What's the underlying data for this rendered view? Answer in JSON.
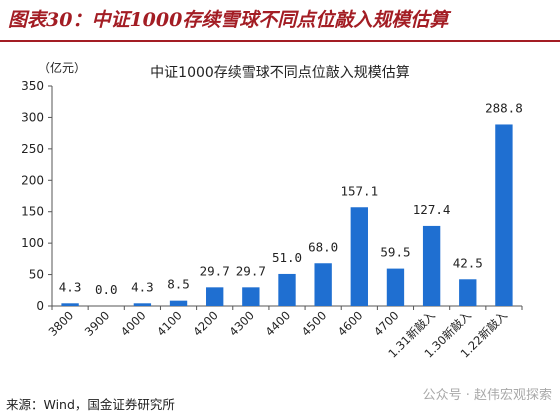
{
  "figure_title": "图表30：中证1000存续雪球不同点位敲入规模估算",
  "source_note": "来源：Wind，国金证券研究所",
  "watermark": "公众号 · 赵伟宏观探索",
  "colors": {
    "bar": "#1f6fd1",
    "title": "#a31d24"
  },
  "chart_data": {
    "type": "bar",
    "title": "中证1000存续雪球不同点位敲入规模估算",
    "unit_label": "（亿元）",
    "categories": [
      "3800",
      "3900",
      "4000",
      "4100",
      "4200",
      "4300",
      "4400",
      "4500",
      "4600",
      "4700",
      "1.31新敲入",
      "1.30新敲入",
      "1.22新敲入"
    ],
    "values": [
      4.3,
      0.0,
      4.3,
      8.5,
      29.7,
      29.7,
      51.0,
      68.0,
      157.1,
      59.5,
      127.4,
      42.5,
      288.8
    ],
    "value_labels": [
      "4.3",
      "0.0",
      "4.3",
      "8.5",
      "29.7",
      "29.7",
      "51.0",
      "68.0",
      "157.1",
      "59.5",
      "127.4",
      "42.5",
      "288.8"
    ],
    "ylim": [
      0,
      350
    ],
    "yticks": [
      "0",
      "50",
      "100",
      "150",
      "200",
      "250",
      "300",
      "350"
    ],
    "grid": false,
    "legend": "none"
  }
}
